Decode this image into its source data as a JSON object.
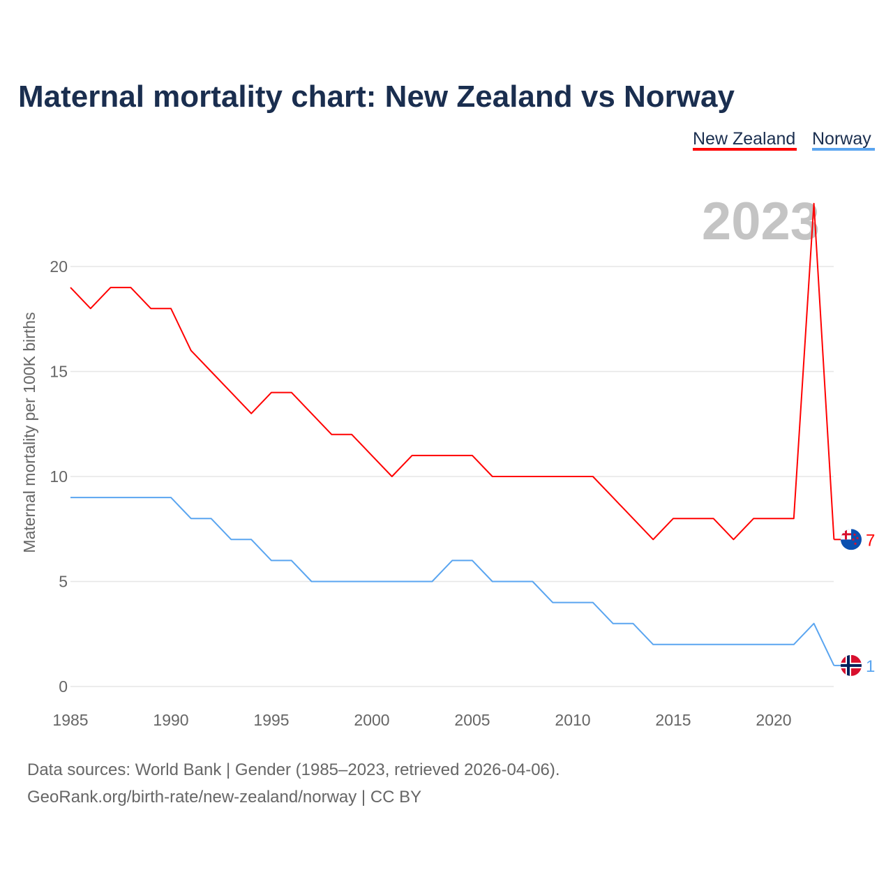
{
  "chart_data": {
    "type": "line",
    "title": "Maternal mortality chart: New Zealand vs Norway",
    "ylabel": "Maternal mortality per 100K births",
    "xlabel": "",
    "xlim": [
      1985,
      2023
    ],
    "ylim": [
      0,
      23
    ],
    "x_ticks": [
      "1985",
      "1990",
      "1995",
      "2000",
      "2005",
      "2010",
      "2015",
      "2020"
    ],
    "y_ticks": [
      "0",
      "5",
      "10",
      "15",
      "20"
    ],
    "year_watermark": "2023",
    "grid": true,
    "legend_position": "top-right",
    "x": [
      1985,
      1986,
      1987,
      1988,
      1989,
      1990,
      1991,
      1992,
      1993,
      1994,
      1995,
      1996,
      1997,
      1998,
      1999,
      2000,
      2001,
      2002,
      2003,
      2004,
      2005,
      2006,
      2007,
      2008,
      2009,
      2010,
      2011,
      2012,
      2013,
      2014,
      2015,
      2016,
      2017,
      2018,
      2019,
      2020,
      2021,
      2022,
      2023
    ],
    "series": [
      {
        "name": "New Zealand",
        "color": "#ff0000",
        "end_label": "7",
        "flag": "new-zealand",
        "values": [
          19,
          18,
          19,
          19,
          18,
          18,
          16,
          15,
          14,
          13,
          14,
          14,
          13,
          12,
          12,
          11,
          10,
          11,
          11,
          11,
          11,
          10,
          10,
          10,
          10,
          10,
          10,
          9,
          8,
          7,
          8,
          8,
          8,
          7,
          8,
          8,
          8,
          23,
          7
        ]
      },
      {
        "name": "Norway",
        "color": "#5aa5f0",
        "end_label": "1",
        "flag": "norway",
        "values": [
          9,
          9,
          9,
          9,
          9,
          9,
          8,
          8,
          7,
          7,
          6,
          6,
          5,
          5,
          5,
          5,
          5,
          5,
          5,
          6,
          6,
          5,
          5,
          5,
          4,
          4,
          4,
          3,
          3,
          2,
          2,
          2,
          2,
          2,
          2,
          2,
          2,
          3,
          1
        ]
      }
    ]
  },
  "footer": {
    "line1": "Data sources: World Bank | Gender (1985–2023, retrieved 2026-04-06).",
    "line2": "GeoRank.org/birth-rate/new-zealand/norway | CC BY"
  }
}
